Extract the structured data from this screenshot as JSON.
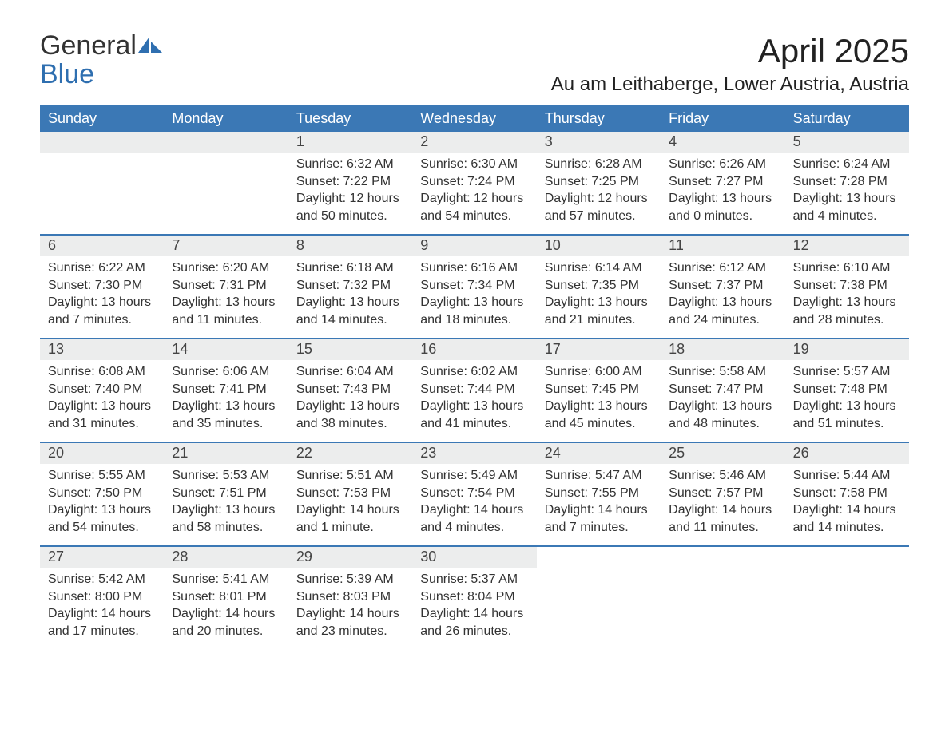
{
  "brand": {
    "name_line1": "General",
    "name_line2": "Blue",
    "logo_color": "#2f6fb0"
  },
  "title": {
    "month": "April 2025",
    "location": "Au am Leithaberge, Lower Austria, Austria"
  },
  "style": {
    "header_bg": "#3b78b5",
    "header_text": "#ffffff",
    "daynum_bg": "#eceded",
    "body_text": "#333333",
    "week_divider": "#3b78b5",
    "page_bg": "#ffffff",
    "month_title_fontsize": 42,
    "location_fontsize": 24,
    "weekday_fontsize": 18,
    "daynum_fontsize": 18,
    "body_fontsize": 16
  },
  "weekdays": [
    "Sunday",
    "Monday",
    "Tuesday",
    "Wednesday",
    "Thursday",
    "Friday",
    "Saturday"
  ],
  "weeks": [
    [
      {
        "empty": true
      },
      {
        "empty": true
      },
      {
        "day": "1",
        "sunrise": "Sunrise: 6:32 AM",
        "sunset": "Sunset: 7:22 PM",
        "daylight": "Daylight: 12 hours and 50 minutes."
      },
      {
        "day": "2",
        "sunrise": "Sunrise: 6:30 AM",
        "sunset": "Sunset: 7:24 PM",
        "daylight": "Daylight: 12 hours and 54 minutes."
      },
      {
        "day": "3",
        "sunrise": "Sunrise: 6:28 AM",
        "sunset": "Sunset: 7:25 PM",
        "daylight": "Daylight: 12 hours and 57 minutes."
      },
      {
        "day": "4",
        "sunrise": "Sunrise: 6:26 AM",
        "sunset": "Sunset: 7:27 PM",
        "daylight": "Daylight: 13 hours and 0 minutes."
      },
      {
        "day": "5",
        "sunrise": "Sunrise: 6:24 AM",
        "sunset": "Sunset: 7:28 PM",
        "daylight": "Daylight: 13 hours and 4 minutes."
      }
    ],
    [
      {
        "day": "6",
        "sunrise": "Sunrise: 6:22 AM",
        "sunset": "Sunset: 7:30 PM",
        "daylight": "Daylight: 13 hours and 7 minutes."
      },
      {
        "day": "7",
        "sunrise": "Sunrise: 6:20 AM",
        "sunset": "Sunset: 7:31 PM",
        "daylight": "Daylight: 13 hours and 11 minutes."
      },
      {
        "day": "8",
        "sunrise": "Sunrise: 6:18 AM",
        "sunset": "Sunset: 7:32 PM",
        "daylight": "Daylight: 13 hours and 14 minutes."
      },
      {
        "day": "9",
        "sunrise": "Sunrise: 6:16 AM",
        "sunset": "Sunset: 7:34 PM",
        "daylight": "Daylight: 13 hours and 18 minutes."
      },
      {
        "day": "10",
        "sunrise": "Sunrise: 6:14 AM",
        "sunset": "Sunset: 7:35 PM",
        "daylight": "Daylight: 13 hours and 21 minutes."
      },
      {
        "day": "11",
        "sunrise": "Sunrise: 6:12 AM",
        "sunset": "Sunset: 7:37 PM",
        "daylight": "Daylight: 13 hours and 24 minutes."
      },
      {
        "day": "12",
        "sunrise": "Sunrise: 6:10 AM",
        "sunset": "Sunset: 7:38 PM",
        "daylight": "Daylight: 13 hours and 28 minutes."
      }
    ],
    [
      {
        "day": "13",
        "sunrise": "Sunrise: 6:08 AM",
        "sunset": "Sunset: 7:40 PM",
        "daylight": "Daylight: 13 hours and 31 minutes."
      },
      {
        "day": "14",
        "sunrise": "Sunrise: 6:06 AM",
        "sunset": "Sunset: 7:41 PM",
        "daylight": "Daylight: 13 hours and 35 minutes."
      },
      {
        "day": "15",
        "sunrise": "Sunrise: 6:04 AM",
        "sunset": "Sunset: 7:43 PM",
        "daylight": "Daylight: 13 hours and 38 minutes."
      },
      {
        "day": "16",
        "sunrise": "Sunrise: 6:02 AM",
        "sunset": "Sunset: 7:44 PM",
        "daylight": "Daylight: 13 hours and 41 minutes."
      },
      {
        "day": "17",
        "sunrise": "Sunrise: 6:00 AM",
        "sunset": "Sunset: 7:45 PM",
        "daylight": "Daylight: 13 hours and 45 minutes."
      },
      {
        "day": "18",
        "sunrise": "Sunrise: 5:58 AM",
        "sunset": "Sunset: 7:47 PM",
        "daylight": "Daylight: 13 hours and 48 minutes."
      },
      {
        "day": "19",
        "sunrise": "Sunrise: 5:57 AM",
        "sunset": "Sunset: 7:48 PM",
        "daylight": "Daylight: 13 hours and 51 minutes."
      }
    ],
    [
      {
        "day": "20",
        "sunrise": "Sunrise: 5:55 AM",
        "sunset": "Sunset: 7:50 PM",
        "daylight": "Daylight: 13 hours and 54 minutes."
      },
      {
        "day": "21",
        "sunrise": "Sunrise: 5:53 AM",
        "sunset": "Sunset: 7:51 PM",
        "daylight": "Daylight: 13 hours and 58 minutes."
      },
      {
        "day": "22",
        "sunrise": "Sunrise: 5:51 AM",
        "sunset": "Sunset: 7:53 PM",
        "daylight": "Daylight: 14 hours and 1 minute."
      },
      {
        "day": "23",
        "sunrise": "Sunrise: 5:49 AM",
        "sunset": "Sunset: 7:54 PM",
        "daylight": "Daylight: 14 hours and 4 minutes."
      },
      {
        "day": "24",
        "sunrise": "Sunrise: 5:47 AM",
        "sunset": "Sunset: 7:55 PM",
        "daylight": "Daylight: 14 hours and 7 minutes."
      },
      {
        "day": "25",
        "sunrise": "Sunrise: 5:46 AM",
        "sunset": "Sunset: 7:57 PM",
        "daylight": "Daylight: 14 hours and 11 minutes."
      },
      {
        "day": "26",
        "sunrise": "Sunrise: 5:44 AM",
        "sunset": "Sunset: 7:58 PM",
        "daylight": "Daylight: 14 hours and 14 minutes."
      }
    ],
    [
      {
        "day": "27",
        "sunrise": "Sunrise: 5:42 AM",
        "sunset": "Sunset: 8:00 PM",
        "daylight": "Daylight: 14 hours and 17 minutes."
      },
      {
        "day": "28",
        "sunrise": "Sunrise: 5:41 AM",
        "sunset": "Sunset: 8:01 PM",
        "daylight": "Daylight: 14 hours and 20 minutes."
      },
      {
        "day": "29",
        "sunrise": "Sunrise: 5:39 AM",
        "sunset": "Sunset: 8:03 PM",
        "daylight": "Daylight: 14 hours and 23 minutes."
      },
      {
        "day": "30",
        "sunrise": "Sunrise: 5:37 AM",
        "sunset": "Sunset: 8:04 PM",
        "daylight": "Daylight: 14 hours and 26 minutes."
      },
      {
        "empty": true,
        "nobar": true
      },
      {
        "empty": true,
        "nobar": true
      },
      {
        "empty": true,
        "nobar": true
      }
    ]
  ]
}
